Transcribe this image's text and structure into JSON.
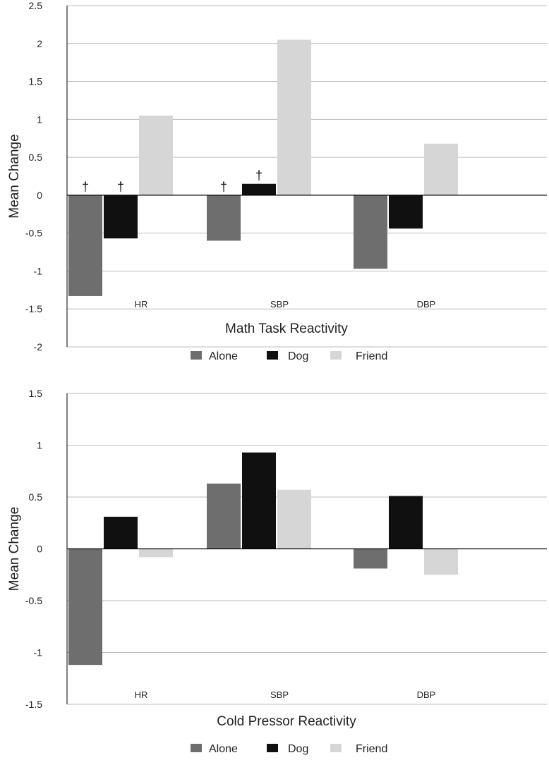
{
  "colors": {
    "Alone": "#6e6e6e",
    "Dog": "#101010",
    "Friend": "#d6d6d6",
    "grid": "#bdbdbd",
    "axis": "#000000"
  },
  "chart_data": [
    {
      "type": "bar",
      "title": "Math Task Reactivity",
      "ylabel": "Mean Change",
      "xlabel": "",
      "categories": [
        "HR",
        "SBP",
        "DBP"
      ],
      "ylim": [
        -2,
        2.5
      ],
      "yticks": [
        "-2",
        "-1.5",
        "-1",
        "-0.5",
        "0",
        "0.5",
        "1",
        "1.5",
        "2",
        "2.5"
      ],
      "grid": true,
      "legend_position": "bottom",
      "series": [
        {
          "name": "Alone",
          "values": [
            -1.33,
            -0.6,
            -0.97
          ]
        },
        {
          "name": "Dog",
          "values": [
            -0.57,
            0.15,
            -0.44
          ]
        },
        {
          "name": "Friend",
          "values": [
            1.05,
            2.05,
            0.68
          ]
        }
      ],
      "annotations": [
        {
          "category": "HR",
          "series": "Alone",
          "text": "†"
        },
        {
          "category": "HR",
          "series": "Dog",
          "text": "†"
        },
        {
          "category": "SBP",
          "series": "Alone",
          "text": "†"
        },
        {
          "category": "SBP",
          "series": "Dog",
          "text": "†"
        }
      ]
    },
    {
      "type": "bar",
      "title": "Cold Pressor Reactivity",
      "ylabel": "Mean Change",
      "xlabel": "",
      "categories": [
        "HR",
        "SBP",
        "DBP"
      ],
      "ylim": [
        -1.5,
        1.5
      ],
      "yticks": [
        "-1.5",
        "-1",
        "-0.5",
        "0",
        "0.5",
        "1",
        "1.5"
      ],
      "grid": true,
      "legend_position": "bottom",
      "series": [
        {
          "name": "Alone",
          "values": [
            -1.12,
            0.63,
            -0.19
          ]
        },
        {
          "name": "Dog",
          "values": [
            0.31,
            0.93,
            0.51
          ]
        },
        {
          "name": "Friend",
          "values": [
            -0.08,
            0.57,
            -0.25
          ]
        }
      ],
      "annotations": []
    }
  ]
}
